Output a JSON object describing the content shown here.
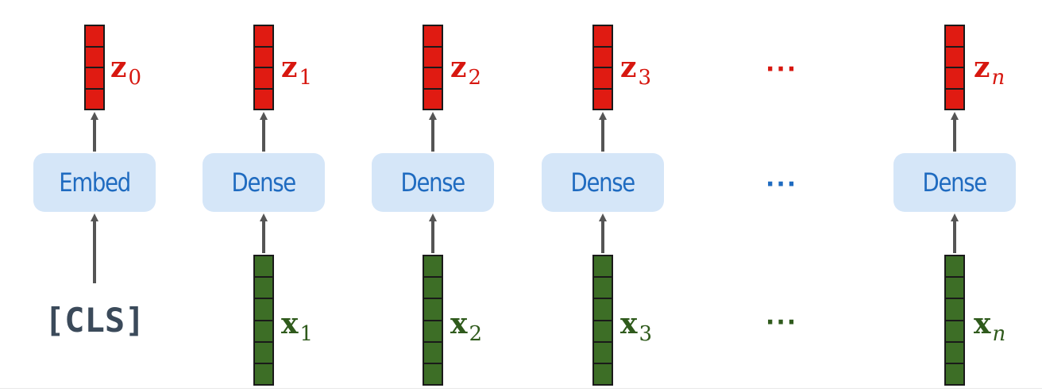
{
  "diagram": {
    "columns": [
      {
        "id": "cls",
        "block_label": "Embed",
        "output_label": {
          "base": "z",
          "sub": "0",
          "sub_italic": false
        },
        "input_text": "[CLS]"
      },
      {
        "id": "t1",
        "block_label": "Dense",
        "output_label": {
          "base": "z",
          "sub": "1",
          "sub_italic": false
        },
        "input_label": {
          "base": "x",
          "sub": "1",
          "sub_italic": false
        }
      },
      {
        "id": "t2",
        "block_label": "Dense",
        "output_label": {
          "base": "z",
          "sub": "2",
          "sub_italic": false
        },
        "input_label": {
          "base": "x",
          "sub": "2",
          "sub_italic": false
        }
      },
      {
        "id": "t3",
        "block_label": "Dense",
        "output_label": {
          "base": "z",
          "sub": "3",
          "sub_italic": false
        },
        "input_label": {
          "base": "x",
          "sub": "3",
          "sub_italic": false
        }
      },
      {
        "id": "tn",
        "block_label": "Dense",
        "output_label": {
          "base": "z",
          "sub": "n",
          "sub_italic": true
        },
        "input_label": {
          "base": "x",
          "sub": "n",
          "sub_italic": true
        }
      }
    ],
    "ellipsis": "···",
    "output_vector_cells": 4,
    "input_vector_cells": 6,
    "colors": {
      "output": "#e01b12",
      "input": "#3d6e26",
      "block_fill": "#d5e6f8",
      "block_text": "#1f6bc0",
      "arrow": "#555555",
      "cls_text": "#3b4a5a"
    }
  }
}
